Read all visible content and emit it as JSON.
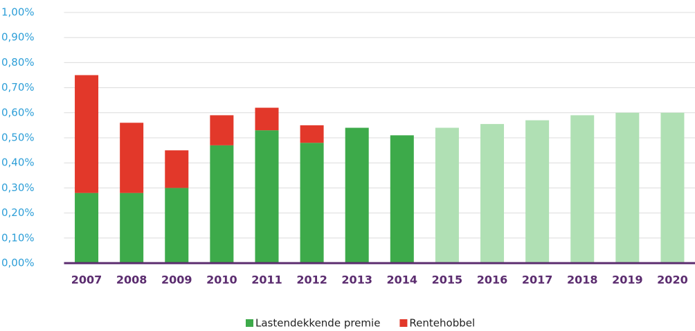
{
  "chart_data": {
    "type": "stacked_bar",
    "categories": [
      "2007",
      "2008",
      "2009",
      "2010",
      "2011",
      "2012",
      "2013",
      "2014",
      "2015",
      "2016",
      "2017",
      "2018",
      "2019",
      "2020"
    ],
    "series": [
      {
        "name": "Lastendekkende premie",
        "color": "#3daa4a",
        "colors": [
          "#3daa4a",
          "#3daa4a",
          "#3daa4a",
          "#3daa4a",
          "#3daa4a",
          "#3daa4a",
          "#3daa4a",
          "#3daa4a",
          "#b0e0b4",
          "#b0e0b4",
          "#b0e0b4",
          "#b0e0b4",
          "#b0e0b4",
          "#b0e0b4"
        ],
        "values": [
          0.28,
          0.28,
          0.3,
          0.47,
          0.53,
          0.48,
          0.54,
          0.51,
          0.54,
          0.555,
          0.57,
          0.59,
          0.6,
          0.6
        ]
      },
      {
        "name": "Rentehobbel",
        "color": "#e2382a",
        "values": [
          0.47,
          0.28,
          0.15,
          0.12,
          0.09,
          0.07,
          null,
          null,
          null,
          null,
          null,
          null,
          null,
          null
        ]
      }
    ],
    "ylim": [
      0,
      1
    ],
    "yticks": [
      {
        "value": 0,
        "label": "0,00%"
      },
      {
        "value": 0.1,
        "label": "0,10%"
      },
      {
        "value": 0.2,
        "label": "0,20%"
      },
      {
        "value": 0.3,
        "label": "0,30%"
      },
      {
        "value": 0.4,
        "label": "0,40%"
      },
      {
        "value": 0.5,
        "label": "0,50%"
      },
      {
        "value": 0.6,
        "label": "0,60%"
      },
      {
        "value": 0.7,
        "label": "0,70%"
      },
      {
        "value": 0.8,
        "label": "0,80%"
      },
      {
        "value": 0.9,
        "label": "0,90%"
      },
      {
        "value": 1,
        "label": "1,00%"
      }
    ],
    "grid": true,
    "legend": "bottom"
  }
}
